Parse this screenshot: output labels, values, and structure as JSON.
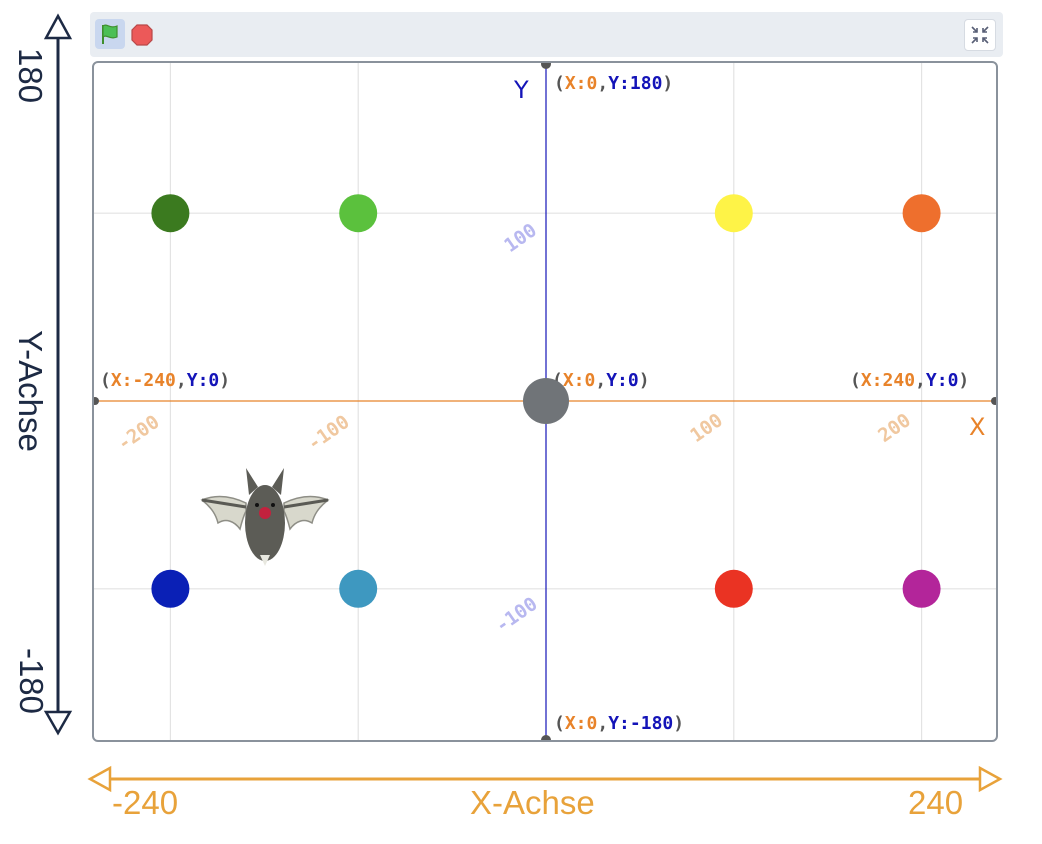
{
  "y_axis": {
    "label": "Y-Achse",
    "max_label": "180",
    "min_label": "-180",
    "color": "#1d2a44"
  },
  "x_axis": {
    "label": "X-Achse",
    "min_label": "-240",
    "max_label": "240",
    "color": "#e8a23a"
  },
  "toolbar": {
    "flag_icon": "green-flag-icon",
    "stop_icon": "stop-icon",
    "shrink_icon": "shrink-stage-icon"
  },
  "stage": {
    "y_axis_letter": "Y",
    "x_axis_letter": "X",
    "coord_labels": {
      "top": {
        "x": "0",
        "y": "180"
      },
      "bottom": {
        "x": "0",
        "y": "-180"
      },
      "left": {
        "x": "-240",
        "y": "0"
      },
      "right": {
        "x": "240",
        "y": "0"
      },
      "center": {
        "x": "0",
        "y": "0"
      }
    },
    "x_ticks": [
      "-200",
      "-100",
      "100",
      "200"
    ],
    "y_ticks": [
      "100",
      "-100"
    ],
    "axis_colors": {
      "x": "#e8832a",
      "y": "#1414b8",
      "x_tick": "#f0c8a0",
      "y_tick": "#b8b8f0"
    },
    "dots": [
      {
        "name": "dark-green-dot",
        "x": -200,
        "y": 100,
        "color": "#3b7a1f"
      },
      {
        "name": "green-dot",
        "x": -100,
        "y": 100,
        "color": "#5bc13d"
      },
      {
        "name": "yellow-dot",
        "x": 100,
        "y": 100,
        "color": "#fef347"
      },
      {
        "name": "orange-dot",
        "x": 200,
        "y": 100,
        "color": "#ee6f2d"
      },
      {
        "name": "blue-dot",
        "x": -200,
        "y": -100,
        "color": "#0a20b6"
      },
      {
        "name": "light-blue-dot",
        "x": -100,
        "y": -100,
        "color": "#3e98c0"
      },
      {
        "name": "red-dot",
        "x": 100,
        "y": -100,
        "color": "#ea3323"
      },
      {
        "name": "purple-dot",
        "x": 200,
        "y": -100,
        "color": "#b3259a"
      },
      {
        "name": "center-gray-dot",
        "x": 0,
        "y": 0,
        "color": "#707478"
      }
    ],
    "sprite": {
      "name": "bat-sprite",
      "x": -150,
      "y": -60
    }
  }
}
